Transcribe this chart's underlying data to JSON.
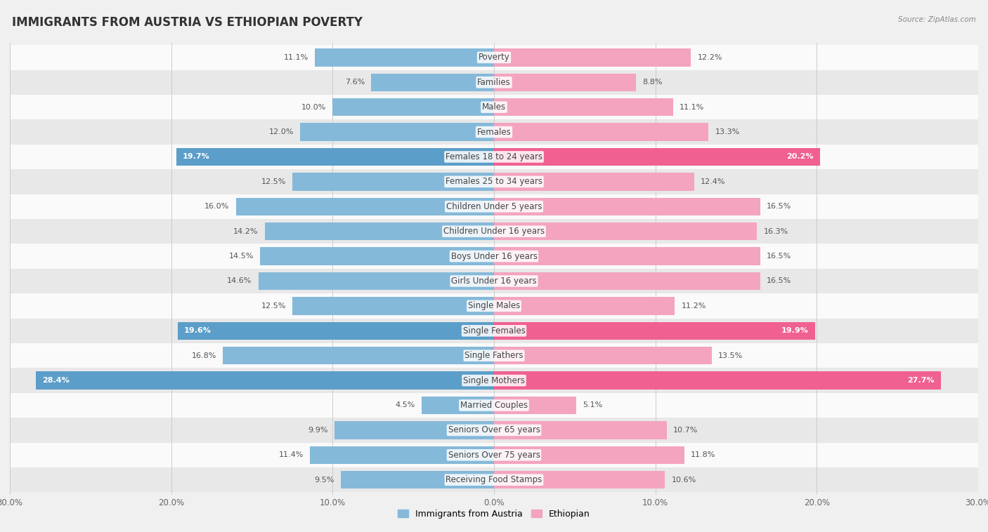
{
  "title": "IMMIGRANTS FROM AUSTRIA VS ETHIOPIAN POVERTY",
  "source": "Source: ZipAtlas.com",
  "categories": [
    "Poverty",
    "Families",
    "Males",
    "Females",
    "Females 18 to 24 years",
    "Females 25 to 34 years",
    "Children Under 5 years",
    "Children Under 16 years",
    "Boys Under 16 years",
    "Girls Under 16 years",
    "Single Males",
    "Single Females",
    "Single Fathers",
    "Single Mothers",
    "Married Couples",
    "Seniors Over 65 years",
    "Seniors Over 75 years",
    "Receiving Food Stamps"
  ],
  "left_values": [
    11.1,
    7.6,
    10.0,
    12.0,
    19.7,
    12.5,
    16.0,
    14.2,
    14.5,
    14.6,
    12.5,
    19.6,
    16.8,
    28.4,
    4.5,
    9.9,
    11.4,
    9.5
  ],
  "right_values": [
    12.2,
    8.8,
    11.1,
    13.3,
    20.2,
    12.4,
    16.5,
    16.3,
    16.5,
    16.5,
    11.2,
    19.9,
    13.5,
    27.7,
    5.1,
    10.7,
    11.8,
    10.6
  ],
  "left_color": "#85b9d9",
  "right_color": "#f4a4be",
  "left_color_bold": "#5b9ec9",
  "right_color_bold": "#f06090",
  "background_color": "#f0f0f0",
  "row_color_light": "#fafafa",
  "row_color_dark": "#e8e8e8",
  "axis_max": 30.0,
  "legend_left": "Immigrants from Austria",
  "legend_right": "Ethiopian",
  "title_fontsize": 12,
  "label_fontsize": 8.5,
  "value_fontsize": 8,
  "white_threshold": 18.0
}
